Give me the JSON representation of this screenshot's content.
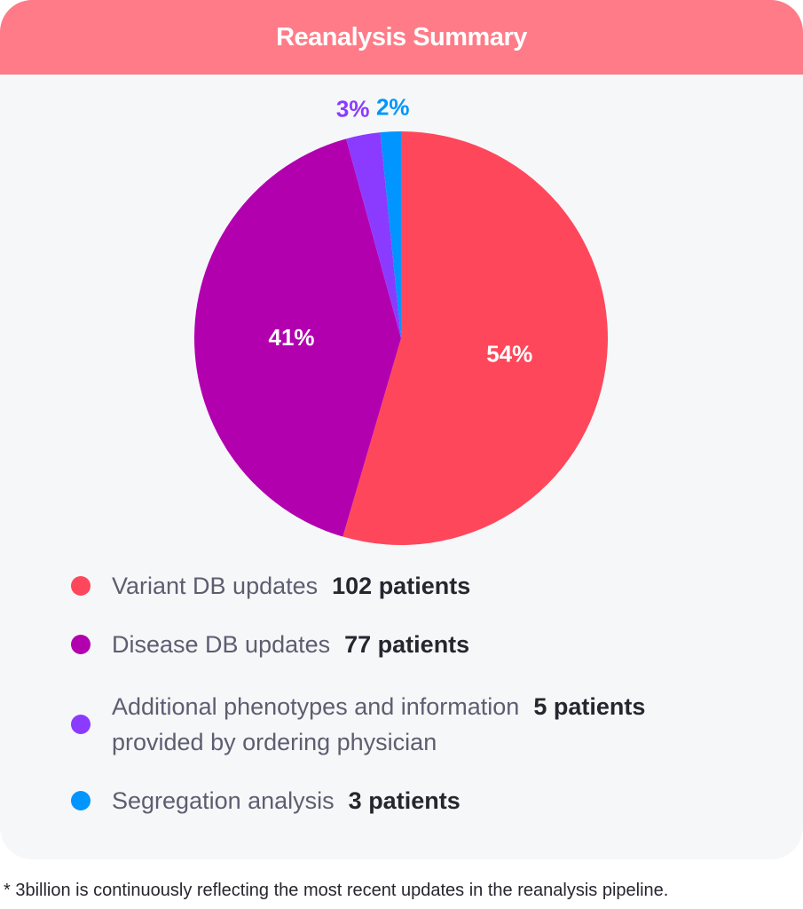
{
  "header": {
    "title": "Reanalysis Summary"
  },
  "chart_data": {
    "type": "pie",
    "title": "Reanalysis Summary",
    "categories": [
      "Variant DB updates",
      "Disease DB updates",
      "Additional phenotypes and information provided by ordering physician",
      "Segregation analysis"
    ],
    "values": [
      102,
      77,
      5,
      3
    ],
    "percent_labels": [
      "54%",
      "41%",
      "3%",
      "2%"
    ],
    "colors": [
      "#FF475B",
      "#B200AF",
      "#8B3BFF",
      "#0095FF"
    ],
    "label_colors": [
      "#FFFFFF",
      "#FFFFFF",
      "#8B3BFF",
      "#0095FF"
    ],
    "start_angle": "top",
    "direction": "clockwise"
  },
  "legend": {
    "items": [
      {
        "label": "Variant DB updates",
        "count": "102 patients"
      },
      {
        "label": "Disease DB updates",
        "count": "77 patients"
      },
      {
        "label_line1": "Additional phenotypes and information",
        "label_line2": "provided by ordering physician",
        "count": "5 patients"
      },
      {
        "label": "Segregation analysis",
        "count": "3 patients"
      }
    ]
  },
  "footnote": "* 3billion is continuously reflecting the most recent updates in the reanalysis pipeline."
}
